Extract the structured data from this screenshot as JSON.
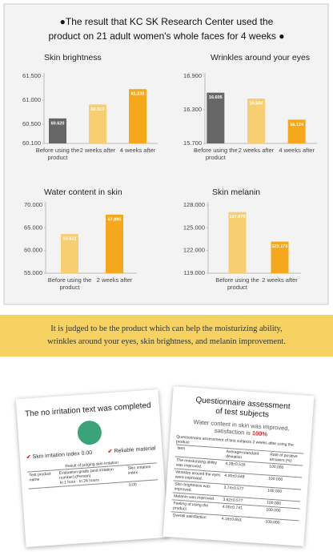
{
  "header": {
    "title_line1": "●The result that KC SK Research Center used the",
    "title_line2": "product on 21 adult women's whole faces for 4 weeks ●"
  },
  "chart_data": [
    {
      "type": "bar",
      "title": "Skin brightness",
      "categories": [
        "Before using the product",
        "2 weeks after",
        "4 weeks after"
      ],
      "values": [
        60.62,
        60.91,
        61.23
      ],
      "value_labels": [
        "60.620",
        "60.910",
        "61.230"
      ],
      "colors": [
        "#666666",
        "#f7cf72",
        "#f5a81c"
      ],
      "ylim": [
        60.1,
        61.5
      ],
      "yticks": [
        {
          "value": 61.5,
          "label": "61.500"
        },
        {
          "value": 61,
          "label": "61.000"
        },
        {
          "value": 60.5,
          "label": "60.500"
        },
        {
          "value": 60.1,
          "label": "60.100"
        }
      ]
    },
    {
      "type": "bar",
      "title": "Wrinkles around your eyes",
      "categories": [
        "Before using the product",
        "2 weeks after",
        "4 weeks after"
      ],
      "values": [
        16.605,
        16.5,
        16.124
      ],
      "value_labels": [
        "16.605",
        "16.500",
        "16.124"
      ],
      "colors": [
        "#666666",
        "#f7cf72",
        "#f5a81c"
      ],
      "ylim": [
        15.7,
        16.9
      ],
      "yticks": [
        {
          "value": 16.9,
          "label": "16.900"
        },
        {
          "value": 16.3,
          "label": "16.300"
        },
        {
          "value": 15.7,
          "label": "15.700"
        }
      ]
    },
    {
      "type": "bar",
      "title": "Water content in skin",
      "categories": [
        "Before using the product",
        "2 weeks after"
      ],
      "values": [
        63.622,
        67.895
      ],
      "value_labels": [
        "63.622",
        "67.895"
      ],
      "colors": [
        "#f7cf72",
        "#f5a81c"
      ],
      "ylim": [
        55,
        70
      ],
      "yticks": [
        {
          "value": 70,
          "label": "70.000"
        },
        {
          "value": 65,
          "label": "65.000"
        },
        {
          "value": 60,
          "label": "60.000"
        },
        {
          "value": 55,
          "label": "55.000"
        }
      ]
    },
    {
      "type": "bar",
      "title": "Skin melanin",
      "categories": [
        "Before using the product",
        "2 weeks after"
      ],
      "values": [
        127.079,
        123.175
      ],
      "value_labels": [
        "127.079",
        "123.175"
      ],
      "colors": [
        "#f7cf72",
        "#f5a81c"
      ],
      "ylim": [
        119,
        128
      ],
      "yticks": [
        {
          "value": 128,
          "label": "128.000"
        },
        {
          "value": 125,
          "label": "125.000"
        },
        {
          "value": 122,
          "label": "122.000"
        },
        {
          "value": 119,
          "label": "119.000"
        }
      ]
    }
  ],
  "banner": {
    "line1": "It is judged to be the product which can help the moisturizing ability,",
    "line2": "wrinkles around your eyes, skin brightness, and melanin improvement."
  },
  "documents": [
    {
      "title": "The no irritation text was completed",
      "check1": "Skin irritation index 0.00",
      "check2": "Reliable material",
      "table_caption": "Result of judging skin irritation",
      "col1": "Test product name",
      "col2": "Evaluation grade (and irritation number) (Person)",
      "col2a": "In 1 hour",
      "col2b": "In 24 hours",
      "col3": "Skin irritation index",
      "index": "0.00"
    },
    {
      "title_line1": "Questionnaire assessment",
      "title_line2": "of test subjects",
      "subtitle_line1": "Water content in skin was improved,",
      "subtitle_line2": "satisfaction is",
      "subtitle_highlight": "100%",
      "table_caption": "Questionnaire assessment of test subjects 2 weeks after using the product",
      "head": [
        "Item",
        "Average±standard deviation",
        "Rate of positive answers (%)"
      ],
      "rows": [
        [
          "The moisturizing ability was improved.",
          "4.28±0.516",
          "100.000"
        ],
        [
          "Wrinkles around the eyes were improved.",
          "4.00±0.548",
          "100.000"
        ],
        [
          "Skin brightness was improved.",
          "3.74±0.577",
          "100.000"
        ],
        [
          "Melanin was improved.",
          "3.62±0.577",
          "100.000"
        ],
        [
          "Feeling of using the product",
          "4.00±0.741",
          "100.000"
        ],
        [
          "Overall satisfaction",
          "4.16±0.653",
          "100.000"
        ]
      ]
    }
  ]
}
